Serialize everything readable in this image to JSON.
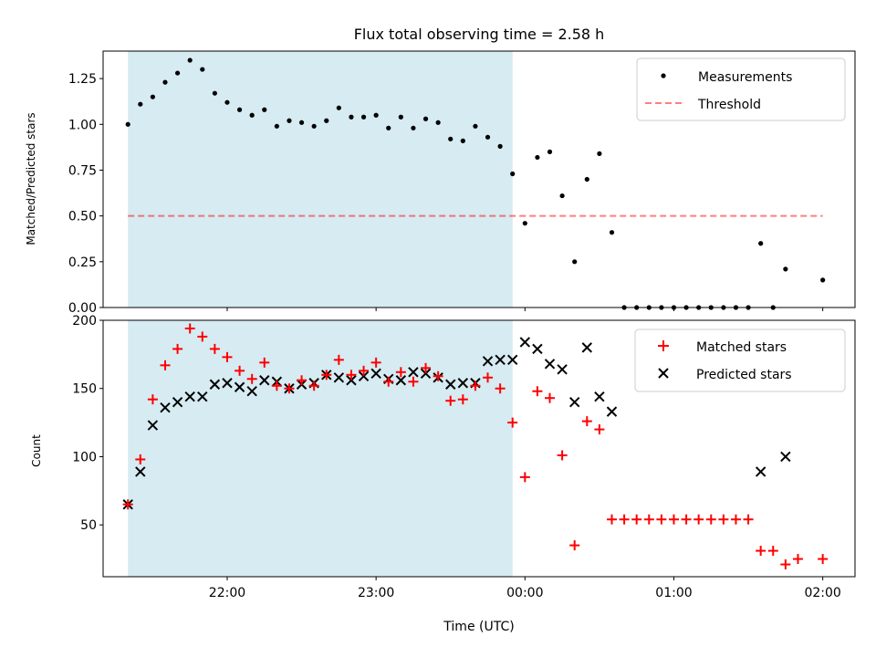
{
  "chart_data": [
    {
      "type": "scatter",
      "title": "Flux total observing time = 2.58 h",
      "ylabel": "Matched/Predicted stars",
      "xlabel": "",
      "ylim": [
        0,
        1.4
      ],
      "yticks": [
        0.0,
        0.25,
        0.5,
        0.75,
        1.0,
        1.25
      ],
      "xlim": [
        "21:10",
        "02:13"
      ],
      "shaded_region": {
        "x_start": "21:20",
        "x_end": "23:55",
        "color": "#add8e6"
      },
      "threshold": {
        "label": "Threshold",
        "value": 0.5,
        "x_start": "21:20",
        "x_end": "02:00",
        "color": "#ff0000",
        "style": "dashed"
      },
      "legend": {
        "position": "top-right",
        "entries": [
          "Measurements",
          "Threshold"
        ]
      },
      "series": [
        {
          "name": "Measurements",
          "marker": "dot",
          "color": "#000000",
          "x": [
            "21:20",
            "21:25",
            "21:30",
            "21:35",
            "21:40",
            "21:45",
            "21:50",
            "21:55",
            "22:00",
            "22:05",
            "22:10",
            "22:15",
            "22:20",
            "22:25",
            "22:30",
            "22:35",
            "22:40",
            "22:45",
            "22:50",
            "22:55",
            "23:00",
            "23:05",
            "23:10",
            "23:15",
            "23:20",
            "23:25",
            "23:30",
            "23:35",
            "23:40",
            "23:45",
            "23:50",
            "23:55",
            "00:00",
            "00:05",
            "00:10",
            "00:15",
            "00:20",
            "00:25",
            "00:30",
            "00:35",
            "00:40",
            "00:45",
            "00:50",
            "00:55",
            "01:00",
            "01:05",
            "01:10",
            "01:15",
            "01:20",
            "01:25",
            "01:30",
            "01:35",
            "01:40",
            "01:45",
            "02:00"
          ],
          "values": [
            1.0,
            1.11,
            1.15,
            1.23,
            1.28,
            1.35,
            1.3,
            1.17,
            1.12,
            1.08,
            1.05,
            1.08,
            0.99,
            1.02,
            1.01,
            0.99,
            1.02,
            1.09,
            1.04,
            1.04,
            1.05,
            0.98,
            1.04,
            0.98,
            1.03,
            1.01,
            0.92,
            0.91,
            0.99,
            0.93,
            0.88,
            0.73,
            0.46,
            0.82,
            0.85,
            0.61,
            0.25,
            0.7,
            0.84,
            0.41,
            0,
            0,
            0,
            0,
            0,
            0,
            0,
            0,
            0,
            0,
            0,
            0.35,
            0,
            0.21,
            0.15
          ]
        }
      ]
    },
    {
      "type": "scatter",
      "title": "",
      "ylabel": "Count",
      "xlabel": "Time (UTC)",
      "ylim": [
        12,
        200
      ],
      "yticks": [
        50,
        100,
        150,
        200
      ],
      "xticks": [
        "22:00",
        "23:00",
        "00:00",
        "01:00",
        "02:00"
      ],
      "xlim": [
        "21:10",
        "02:13"
      ],
      "shaded_region": {
        "x_start": "21:20",
        "x_end": "23:55",
        "color": "#add8e6"
      },
      "legend": {
        "position": "top-right",
        "entries": [
          "Matched stars",
          "Predicted stars"
        ]
      },
      "series": [
        {
          "name": "Matched stars",
          "marker": "plus",
          "color": "#ff0000",
          "x": [
            "21:20",
            "21:25",
            "21:30",
            "21:35",
            "21:40",
            "21:45",
            "21:50",
            "21:55",
            "22:00",
            "22:05",
            "22:10",
            "22:15",
            "22:20",
            "22:25",
            "22:30",
            "22:35",
            "22:40",
            "22:45",
            "22:50",
            "22:55",
            "23:00",
            "23:05",
            "23:10",
            "23:15",
            "23:20",
            "23:25",
            "23:30",
            "23:35",
            "23:40",
            "23:45",
            "23:50",
            "23:55",
            "00:00",
            "00:05",
            "00:10",
            "00:15",
            "00:20",
            "00:25",
            "00:30",
            "00:35",
            "00:40",
            "00:45",
            "00:50",
            "00:55",
            "01:00",
            "01:05",
            "01:10",
            "01:15",
            "01:20",
            "01:25",
            "01:30",
            "01:35",
            "01:40",
            "01:45",
            "01:50",
            "02:00"
          ],
          "values": [
            65,
            98,
            142,
            167,
            179,
            194,
            188,
            179,
            173,
            163,
            157,
            169,
            152,
            150,
            156,
            152,
            160,
            171,
            160,
            163,
            169,
            155,
            162,
            155,
            165,
            159,
            141,
            142,
            152,
            158,
            150,
            125,
            85,
            148,
            143,
            101,
            35,
            126,
            120,
            54,
            54,
            54,
            54,
            54,
            54,
            54,
            54,
            54,
            54,
            54,
            54,
            31,
            31,
            21,
            25,
            25
          ]
        },
        {
          "name": "Predicted stars",
          "marker": "x",
          "color": "#000000",
          "x": [
            "21:20",
            "21:25",
            "21:30",
            "21:35",
            "21:40",
            "21:45",
            "21:50",
            "21:55",
            "22:00",
            "22:05",
            "22:10",
            "22:15",
            "22:20",
            "22:25",
            "22:30",
            "22:35",
            "22:40",
            "22:45",
            "22:50",
            "22:55",
            "23:00",
            "23:05",
            "23:10",
            "23:15",
            "23:20",
            "23:25",
            "23:30",
            "23:35",
            "23:40",
            "23:45",
            "23:50",
            "23:55",
            "00:00",
            "00:05",
            "00:10",
            "00:15",
            "00:20",
            "00:25",
            "00:30",
            "00:35",
            "01:35",
            "01:45"
          ],
          "values": [
            65,
            89,
            123,
            136,
            140,
            144,
            144,
            153,
            154,
            151,
            148,
            156,
            155,
            150,
            153,
            154,
            160,
            158,
            156,
            159,
            161,
            157,
            156,
            162,
            161,
            158,
            153,
            154,
            154,
            170,
            171,
            171,
            184,
            179,
            168,
            164,
            140,
            180,
            144,
            133,
            89,
            100
          ]
        }
      ]
    }
  ]
}
